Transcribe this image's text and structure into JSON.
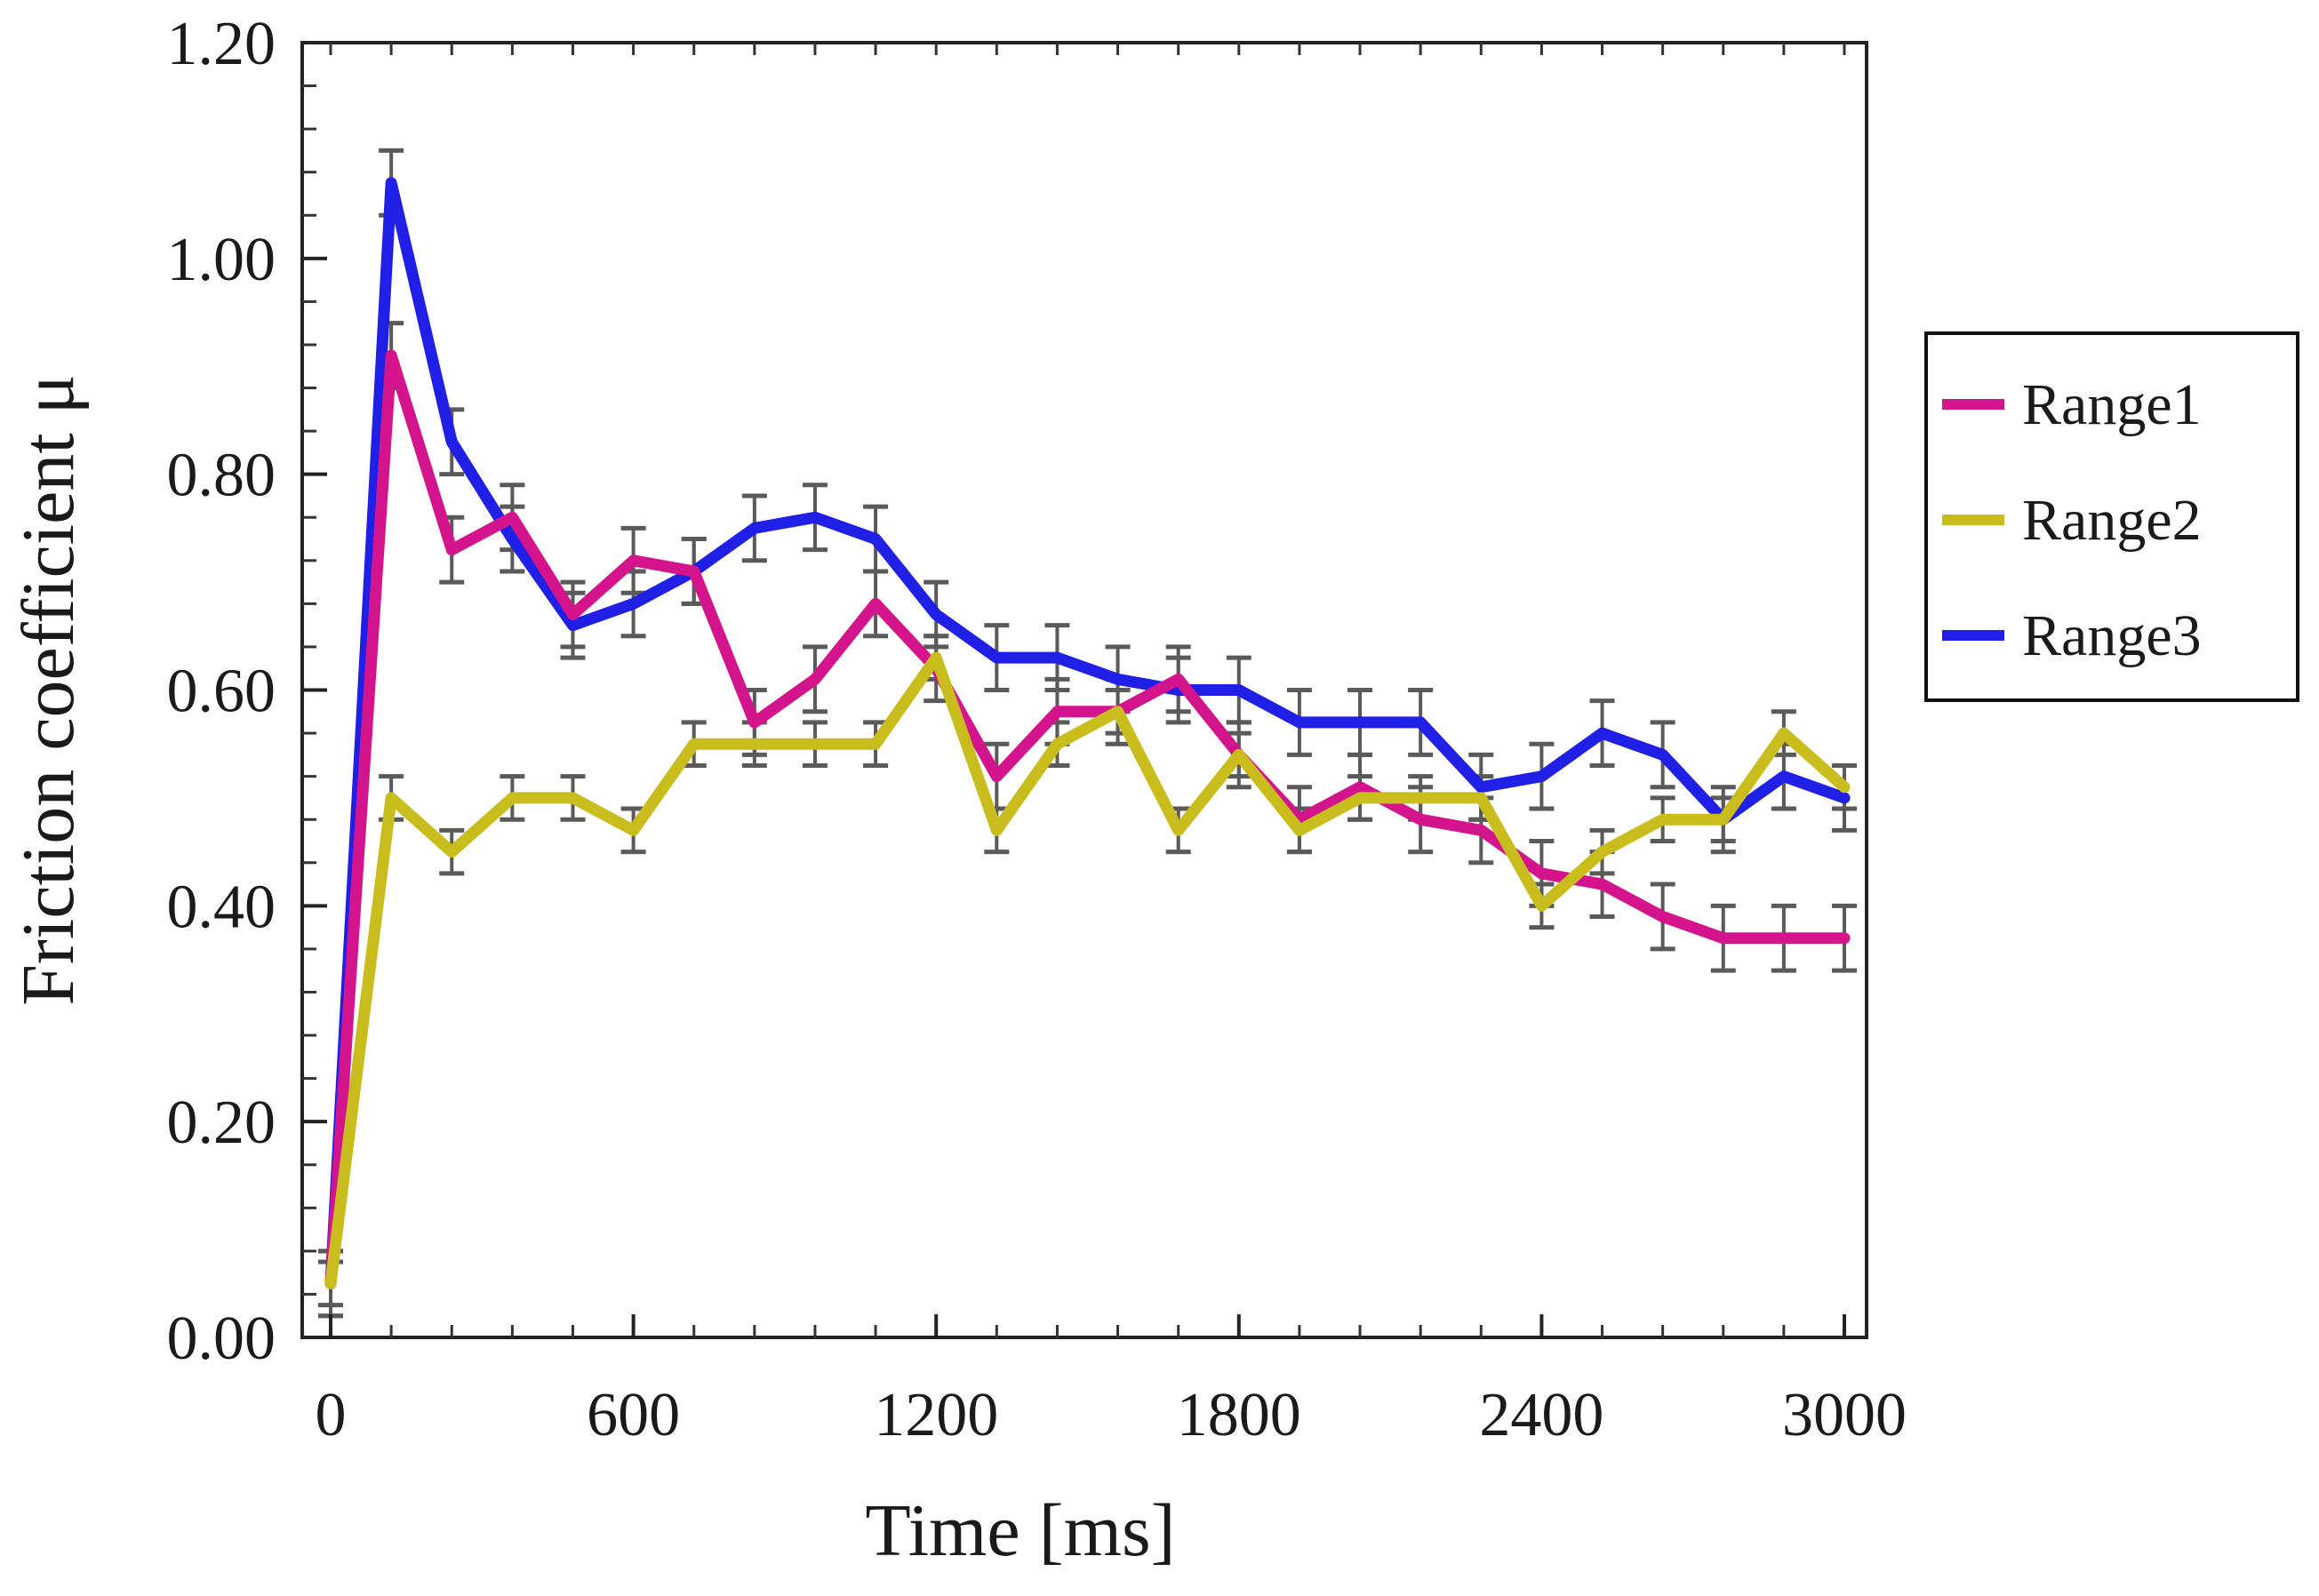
{
  "chart_data": {
    "type": "line",
    "xlabel": "Time [ms]",
    "ylabel": "Friction coefficient μ",
    "xlim": [
      0,
      3000
    ],
    "ylim": [
      0,
      1.2
    ],
    "xticks": [
      "0",
      "600",
      "1200",
      "1800",
      "2400",
      "3000"
    ],
    "xtick_values": [
      0,
      600,
      1200,
      1800,
      2400,
      3000
    ],
    "yticks": [
      "0.00",
      "0.20",
      "0.40",
      "0.60",
      "0.80",
      "1.00",
      "1.20"
    ],
    "ytick_values": [
      0,
      0.2,
      0.4,
      0.6,
      0.8,
      1.0,
      1.2
    ],
    "grid": false,
    "legend_position": "right",
    "x": [
      0,
      120,
      240,
      360,
      480,
      600,
      720,
      840,
      960,
      1080,
      1200,
      1320,
      1440,
      1560,
      1680,
      1800,
      1920,
      2040,
      2160,
      2280,
      2400,
      2520,
      2640,
      2760,
      2880,
      3000
    ],
    "series": [
      {
        "name": "Range1",
        "color": "#d4148c",
        "values": [
          0.05,
          0.91,
          0.73,
          0.76,
          0.67,
          0.72,
          0.71,
          0.57,
          0.61,
          0.68,
          0.62,
          0.52,
          0.58,
          0.58,
          0.61,
          0.54,
          0.48,
          0.51,
          0.48,
          0.47,
          0.43,
          0.42,
          0.39,
          0.37,
          0.37,
          0.37
        ],
        "errors": [
          0.03,
          0.03,
          0.03,
          0.03,
          0.03,
          0.03,
          0.03,
          0.03,
          0.03,
          0.03,
          0.03,
          0.03,
          0.03,
          0.03,
          0.03,
          0.03,
          0.03,
          0.03,
          0.03,
          0.03,
          0.03,
          0.03,
          0.03,
          0.03,
          0.03,
          0.03
        ]
      },
      {
        "name": "Range2",
        "color": "#c8bd1c",
        "values": [
          0.05,
          0.5,
          0.45,
          0.5,
          0.5,
          0.47,
          0.55,
          0.55,
          0.55,
          0.55,
          0.63,
          0.47,
          0.55,
          0.58,
          0.47,
          0.54,
          0.47,
          0.5,
          0.5,
          0.5,
          0.4,
          0.45,
          0.48,
          0.48,
          0.56,
          0.51
        ],
        "errors": [
          0.02,
          0.02,
          0.02,
          0.02,
          0.02,
          0.02,
          0.02,
          0.02,
          0.02,
          0.02,
          0.02,
          0.02,
          0.02,
          0.02,
          0.02,
          0.02,
          0.02,
          0.02,
          0.02,
          0.02,
          0.02,
          0.02,
          0.02,
          0.02,
          0.02,
          0.02
        ]
      },
      {
        "name": "Range3",
        "color": "#1f1fe6",
        "values": [
          0.05,
          1.07,
          0.83,
          0.74,
          0.66,
          0.68,
          0.71,
          0.75,
          0.76,
          0.74,
          0.67,
          0.63,
          0.63,
          0.61,
          0.6,
          0.6,
          0.57,
          0.57,
          0.57,
          0.51,
          0.52,
          0.56,
          0.54,
          0.48,
          0.52,
          0.5
        ],
        "errors": [
          0.03,
          0.03,
          0.03,
          0.03,
          0.03,
          0.03,
          0.03,
          0.03,
          0.03,
          0.03,
          0.03,
          0.03,
          0.03,
          0.03,
          0.03,
          0.03,
          0.03,
          0.03,
          0.03,
          0.03,
          0.03,
          0.03,
          0.03,
          0.03,
          0.03,
          0.03
        ]
      }
    ]
  }
}
